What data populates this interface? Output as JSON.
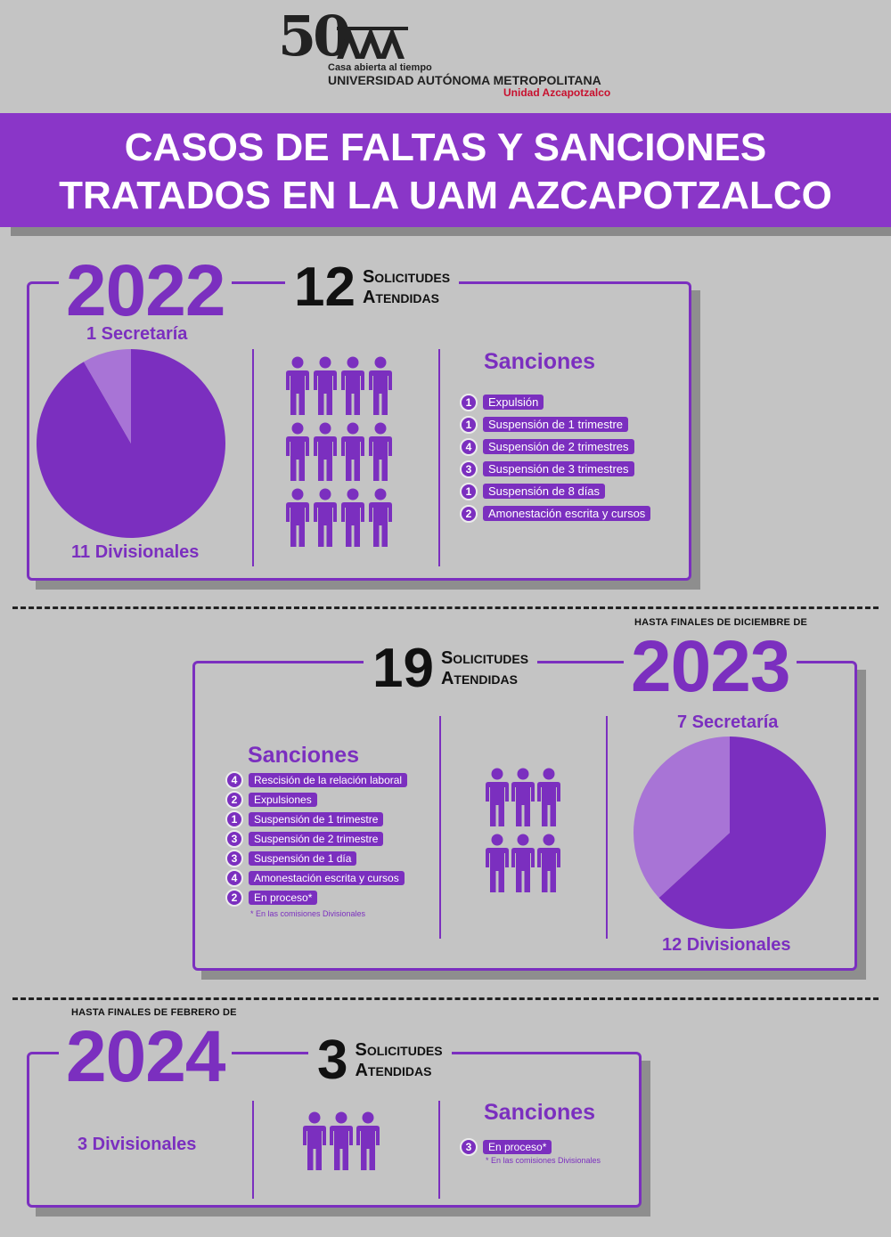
{
  "header": {
    "anniversary": "50",
    "tagline": "Casa abierta al tiempo",
    "university": "UNIVERSIDAD AUTÓNOMA METROPOLITANA",
    "unit": "Unidad Azcapotzalco"
  },
  "title": {
    "line1": "CASOS DE FALTAS Y SANCIONES",
    "line2": "TRATADOS EN LA UAM AZCAPOTZALCO"
  },
  "colors": {
    "accent": "#7b2fbf",
    "accent_light": "#a874d6",
    "background": "#c4c4c4",
    "banner": "#8a36c8"
  },
  "sections": [
    {
      "year": "2022",
      "prefix": "",
      "requests": "12",
      "requests_line1": "Solicitudes",
      "requests_line2": "Atendidas",
      "pie_top_label": "1 Secretaría",
      "pie_bottom_label": "11 Divisionales",
      "pie": {
        "secretaria": 1,
        "divisionales": 11
      },
      "people_icons": 12,
      "sanctions_title": "Sanciones",
      "sanctions": [
        {
          "count": "1",
          "label": "Expulsión"
        },
        {
          "count": "1",
          "label": "Suspensión de 1 trimestre"
        },
        {
          "count": "4",
          "label": "Suspensión de 2 trimestres"
        },
        {
          "count": "3",
          "label": "Suspensión de 3 trimestres"
        },
        {
          "count": "1",
          "label": "Suspensión de 8 días"
        },
        {
          "count": "2",
          "label": "Amonestación escrita y cursos"
        }
      ]
    },
    {
      "year": "2023",
      "prefix": "HASTA FINALES DE DICIEMBRE DE",
      "requests": "19",
      "requests_line1": "Solicitudes",
      "requests_line2": "Atendidas",
      "pie_top_label": "7 Secretaría",
      "pie_bottom_label": "12 Divisionales",
      "pie": {
        "secretaria": 7,
        "divisionales": 12
      },
      "people_icons": 6,
      "sanctions_title": "Sanciones",
      "sanctions": [
        {
          "count": "4",
          "label": "Rescisión de la relación laboral"
        },
        {
          "count": "2",
          "label": "Expulsiones"
        },
        {
          "count": "1",
          "label": "Suspensión de 1 trimestre"
        },
        {
          "count": "3",
          "label": "Suspensión de 2 trimestre"
        },
        {
          "count": "3",
          "label": "Suspensión de 1 día"
        },
        {
          "count": "4",
          "label": "Amonestación escrita y cursos"
        },
        {
          "count": "2",
          "label": "En proceso*"
        }
      ],
      "note": "* En las comisiones Divisionales"
    },
    {
      "year": "2024",
      "prefix": "HASTA FINALES DE FEBRERO DE",
      "requests": "3",
      "requests_line1": "Solicitudes",
      "requests_line2": "Atendidas",
      "divisionales_label": "3 Divisionales",
      "people_icons": 3,
      "sanctions_title": "Sanciones",
      "sanctions": [
        {
          "count": "3",
          "label": "En proceso*"
        }
      ],
      "note": "* En las comisiones Divisionales"
    }
  ]
}
